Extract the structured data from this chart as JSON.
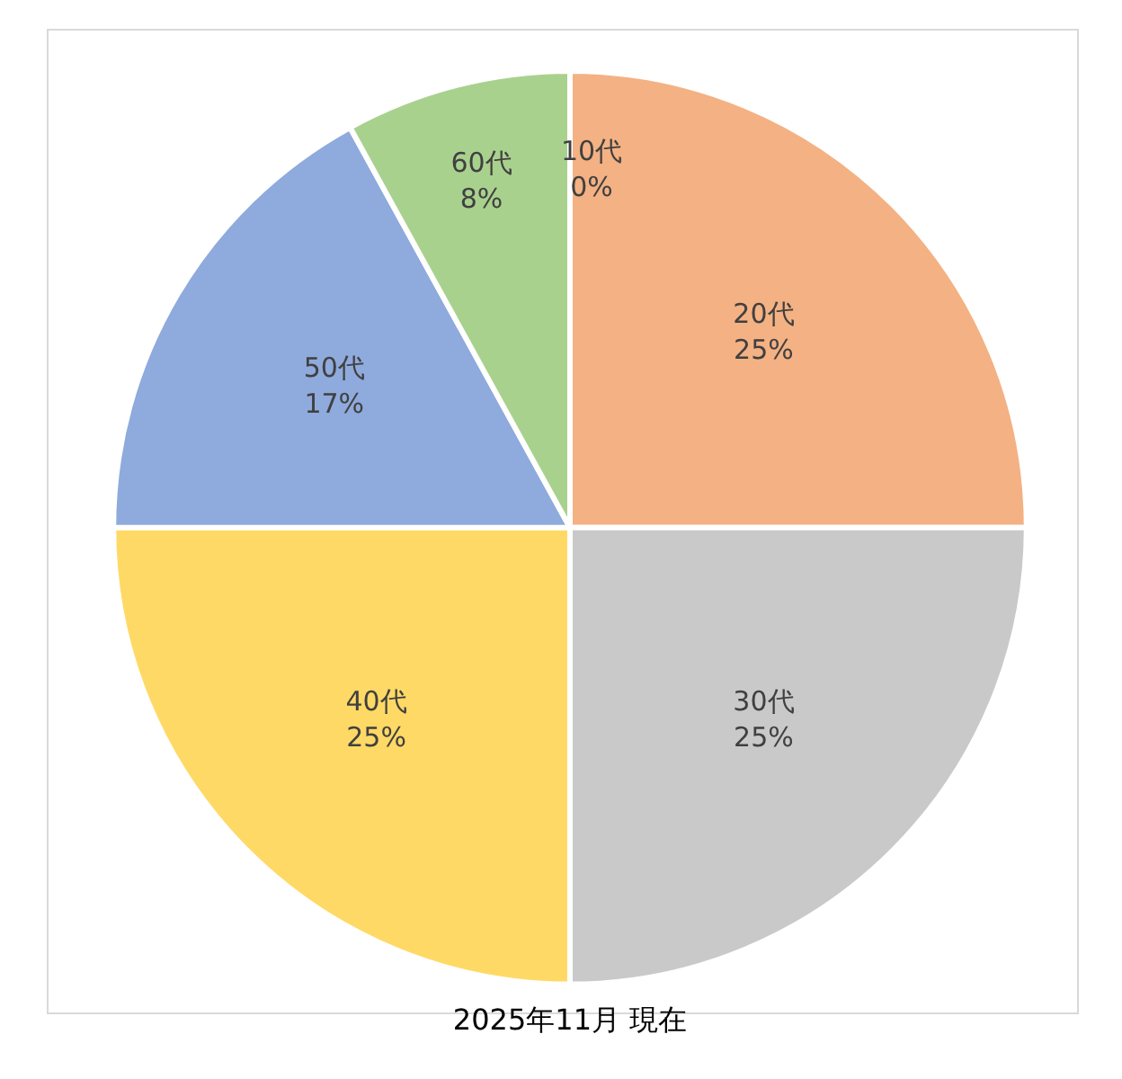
{
  "chart_data": {
    "type": "pie",
    "title": "2025年11月 現在",
    "categories": [
      "10代",
      "20代",
      "30代",
      "40代",
      "50代",
      "60代"
    ],
    "values": [
      0,
      25,
      25,
      25,
      17,
      8
    ],
    "value_labels": [
      "0%",
      "25%",
      "25%",
      "25%",
      "17%",
      "8%"
    ],
    "colors": [
      "#5b9bd5",
      "#f4b183",
      "#c9c9c9",
      "#ffd966",
      "#8faadc",
      "#a9d18e"
    ],
    "legend": false
  }
}
